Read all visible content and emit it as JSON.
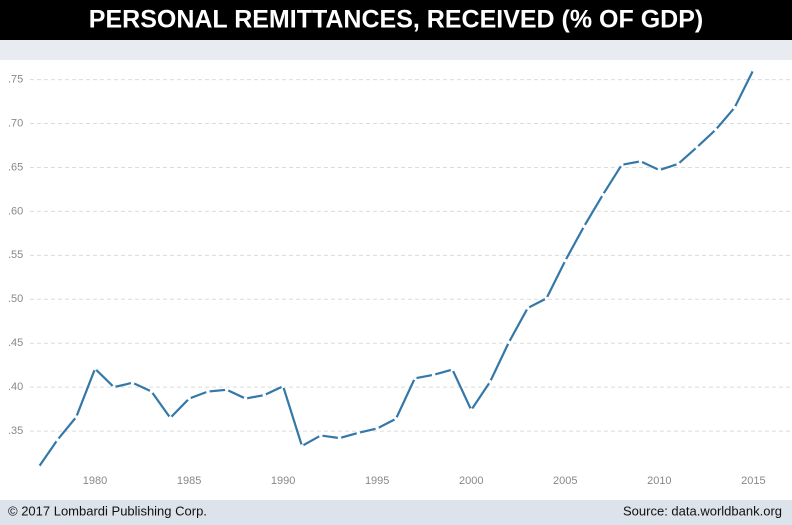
{
  "chart_data": {
    "type": "line",
    "title": "PERSONAL REMITTANCES, RECEIVED (% OF GDP)",
    "footer_left": "© 2017 Lombardi Publishing Corp.",
    "footer_right": "Source: data.worldbank.org",
    "x": [
      1977,
      1978,
      1979,
      1980,
      1981,
      1982,
      1983,
      1984,
      1985,
      1986,
      1987,
      1988,
      1989,
      1990,
      1991,
      1992,
      1993,
      1994,
      1995,
      1996,
      1997,
      1998,
      1999,
      2000,
      2001,
      2002,
      2003,
      2004,
      2005,
      2006,
      2007,
      2008,
      2009,
      2010,
      2011,
      2012,
      2013,
      2014,
      2015
    ],
    "series": [
      {
        "color": "#3478a8",
        "values": [
          0.309,
          0.34,
          0.366,
          0.421,
          0.4,
          0.405,
          0.395,
          0.365,
          0.387,
          0.395,
          0.397,
          0.387,
          0.391,
          0.401,
          0.333,
          0.345,
          0.342,
          0.348,
          0.353,
          0.364,
          0.41,
          0.414,
          0.42,
          0.374,
          0.406,
          0.451,
          0.49,
          0.501,
          0.544,
          0.583,
          0.619,
          0.653,
          0.657,
          0.647,
          0.654,
          0.673,
          0.693,
          0.718,
          0.761
        ]
      }
    ],
    "xlim": [
      1975,
      2017
    ],
    "xticks": [
      1980,
      1985,
      1990,
      1995,
      2000,
      2005,
      2010,
      2015
    ],
    "ylim": [
      0.3,
      0.77
    ],
    "yticks": [
      {
        "value": 0.35,
        "label": ".35"
      },
      {
        "value": 0.4,
        "label": ".40"
      },
      {
        "value": 0.45,
        "label": ".45"
      },
      {
        "value": 0.5,
        "label": ".50"
      },
      {
        "value": 0.55,
        "label": ".55"
      },
      {
        "value": 0.6,
        "label": ".60"
      },
      {
        "value": 0.65,
        "label": ".65"
      },
      {
        "value": 0.7,
        "label": ".70"
      },
      {
        "value": 0.75,
        "label": ".75"
      }
    ],
    "grid": true
  }
}
